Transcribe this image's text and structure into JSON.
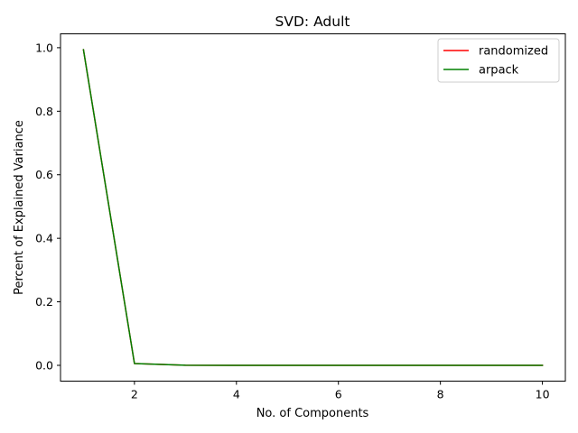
{
  "chart_data": {
    "type": "line",
    "title": "SVD: Adult",
    "xlabel": "No. of Components",
    "ylabel": "Percent of Explained Variance",
    "xlim": [
      0.55,
      10.45
    ],
    "ylim": [
      -0.0497,
      1.0437
    ],
    "xticks": [
      2,
      4,
      6,
      8,
      10
    ],
    "xtick_labels": [
      "2",
      "4",
      "6",
      "8",
      "10"
    ],
    "yticks": [
      0.0,
      0.2,
      0.4,
      0.6,
      0.8,
      1.0
    ],
    "ytick_labels": [
      "0.0",
      "0.2",
      "0.4",
      "0.6",
      "0.8",
      "1.0"
    ],
    "grid": false,
    "legend_position": "top-right",
    "x": [
      1,
      2,
      3,
      4,
      5,
      6,
      7,
      8,
      9,
      10
    ],
    "series": [
      {
        "name": "randomized",
        "color": "#ff0000",
        "values": [
          0.9937,
          0.0058,
          0.0003,
          0.0001,
          0.0001,
          0.0,
          0.0,
          0.0,
          0.0,
          0.0
        ]
      },
      {
        "name": "arpack",
        "color": "#008000",
        "values": [
          0.9937,
          0.0058,
          0.0003,
          0.0001,
          0.0001,
          0.0,
          0.0,
          0.0,
          0.0,
          0.0
        ]
      }
    ]
  }
}
